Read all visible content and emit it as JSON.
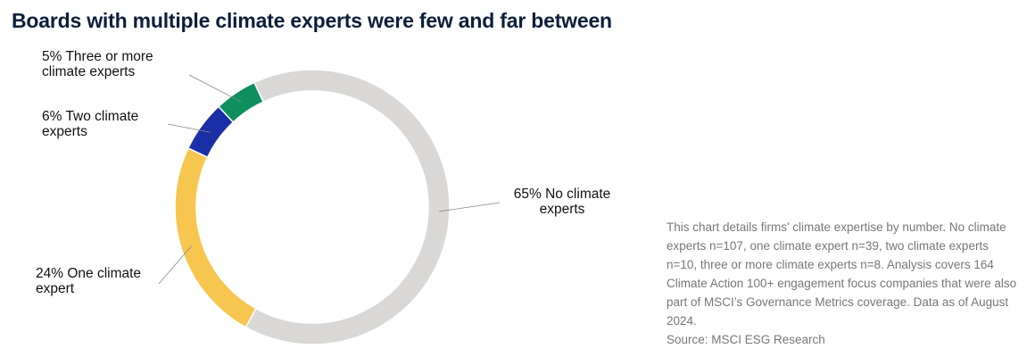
{
  "chart_data": {
    "type": "donut",
    "title": "Boards with multiple climate experts were few and far between",
    "categories": [
      "No climate experts",
      "One climate expert",
      "Two climate experts",
      "Three or more climate experts"
    ],
    "values": [
      65,
      24,
      6,
      5
    ],
    "value_labels": [
      "65%",
      "24%",
      "6%",
      "5%"
    ],
    "colors": [
      "#d9d8d6",
      "#f7c64f",
      "#1a2fa5",
      "#0d8f5e"
    ],
    "note": "This chart details firms’ climate expertise by number. No climate experts n=107, one climate expert n=39, two climate experts n=10, three or more climate experts n=8. Analysis covers 164 Climate Action 100+ engagement focus companies that were also part of MSCI’s Governance Metrics coverage. Data as of August 2024.",
    "source": "Source: MSCI ESG Research"
  }
}
